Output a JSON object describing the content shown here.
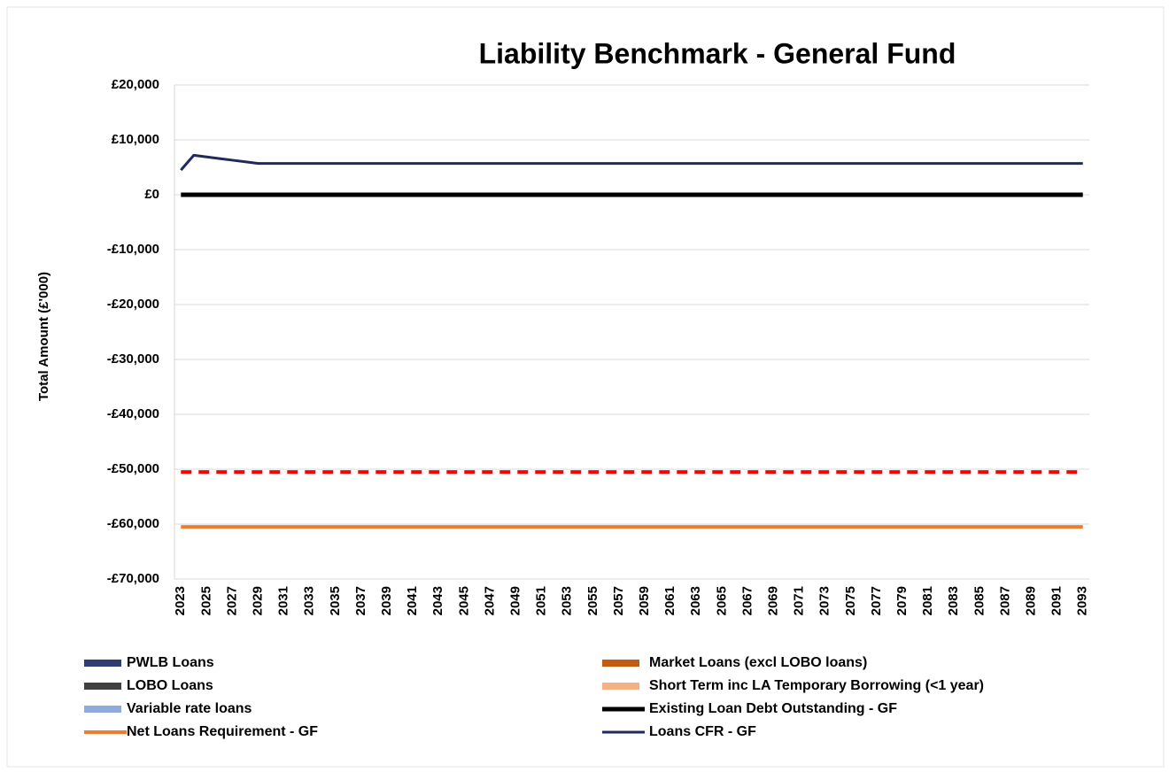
{
  "chart_data": {
    "type": "combo",
    "title": "Liability Benchmark - General Fund",
    "y_label": "Total Amount (£'000)",
    "x": [
      2023,
      2024,
      2025,
      2026,
      2027,
      2028,
      2029,
      2030,
      2031,
      2032,
      2033,
      2034,
      2035,
      2036,
      2037,
      2038,
      2039,
      2040,
      2041,
      2042,
      2043,
      2044,
      2045,
      2046,
      2047,
      2048,
      2049,
      2050,
      2051,
      2052,
      2053,
      2054,
      2055,
      2056,
      2057,
      2058,
      2059,
      2060,
      2061,
      2062,
      2063,
      2064,
      2065,
      2066,
      2067,
      2068,
      2069,
      2070,
      2071,
      2072,
      2073,
      2074,
      2075,
      2076,
      2077,
      2078,
      2079,
      2080,
      2081,
      2082,
      2083,
      2084,
      2085,
      2086,
      2087,
      2088,
      2089,
      2090,
      2091,
      2092,
      2093
    ],
    "xlim": [
      2022.5,
      2093.5
    ],
    "xticks": [
      2023,
      2025,
      2027,
      2029,
      2031,
      2033,
      2035,
      2037,
      2039,
      2041,
      2043,
      2045,
      2047,
      2049,
      2051,
      2053,
      2055,
      2057,
      2059,
      2061,
      2063,
      2065,
      2067,
      2069,
      2071,
      2073,
      2075,
      2077,
      2079,
      2081,
      2083,
      2085,
      2087,
      2089,
      2091,
      2093
    ],
    "ylim": [
      -70000,
      20000
    ],
    "yticks": [
      {
        "value": -70000,
        "label": "-£70,000"
      },
      {
        "value": -60000,
        "label": "-£60,000"
      },
      {
        "value": -50000,
        "label": "-£50,000"
      },
      {
        "value": -40000,
        "label": "-£40,000"
      },
      {
        "value": -30000,
        "label": "-£30,000"
      },
      {
        "value": -20000,
        "label": "-£20,000"
      },
      {
        "value": -10000,
        "label": "-£10,000"
      },
      {
        "value": 0,
        "label": "£0"
      },
      {
        "value": 10000,
        "label": "£10,000"
      },
      {
        "value": 20000,
        "label": "£20,000"
      }
    ],
    "grid": true,
    "series": [
      {
        "name": "PWLB Loans",
        "type": "bar",
        "color": "#2f3d73",
        "values": [
          0,
          0,
          0,
          0,
          0,
          0,
          0,
          0,
          0,
          0,
          0,
          0,
          0,
          0,
          0,
          0,
          0,
          0,
          0,
          0,
          0,
          0,
          0,
          0,
          0,
          0,
          0,
          0,
          0,
          0,
          0,
          0,
          0,
          0,
          0,
          0,
          0,
          0,
          0,
          0,
          0,
          0,
          0,
          0,
          0,
          0,
          0,
          0,
          0,
          0,
          0,
          0,
          0,
          0,
          0,
          0,
          0,
          0,
          0,
          0,
          0,
          0,
          0,
          0,
          0,
          0,
          0,
          0,
          0,
          0,
          0
        ]
      },
      {
        "name": "Market Loans (excl LOBO loans)",
        "type": "bar",
        "color": "#c55a11",
        "values": [
          0,
          0,
          0,
          0,
          0,
          0,
          0,
          0,
          0,
          0,
          0,
          0,
          0,
          0,
          0,
          0,
          0,
          0,
          0,
          0,
          0,
          0,
          0,
          0,
          0,
          0,
          0,
          0,
          0,
          0,
          0,
          0,
          0,
          0,
          0,
          0,
          0,
          0,
          0,
          0,
          0,
          0,
          0,
          0,
          0,
          0,
          0,
          0,
          0,
          0,
          0,
          0,
          0,
          0,
          0,
          0,
          0,
          0,
          0,
          0,
          0,
          0,
          0,
          0,
          0,
          0,
          0,
          0,
          0,
          0,
          0
        ]
      },
      {
        "name": "LOBO Loans",
        "type": "bar",
        "color": "#404040",
        "values": [
          0,
          0,
          0,
          0,
          0,
          0,
          0,
          0,
          0,
          0,
          0,
          0,
          0,
          0,
          0,
          0,
          0,
          0,
          0,
          0,
          0,
          0,
          0,
          0,
          0,
          0,
          0,
          0,
          0,
          0,
          0,
          0,
          0,
          0,
          0,
          0,
          0,
          0,
          0,
          0,
          0,
          0,
          0,
          0,
          0,
          0,
          0,
          0,
          0,
          0,
          0,
          0,
          0,
          0,
          0,
          0,
          0,
          0,
          0,
          0,
          0,
          0,
          0,
          0,
          0,
          0,
          0,
          0,
          0,
          0,
          0
        ]
      },
      {
        "name": "Short Term inc LA Temporary Borrowing (<1 year)",
        "type": "bar",
        "color": "#f4b183",
        "values": [
          0,
          0,
          0,
          0,
          0,
          0,
          0,
          0,
          0,
          0,
          0,
          0,
          0,
          0,
          0,
          0,
          0,
          0,
          0,
          0,
          0,
          0,
          0,
          0,
          0,
          0,
          0,
          0,
          0,
          0,
          0,
          0,
          0,
          0,
          0,
          0,
          0,
          0,
          0,
          0,
          0,
          0,
          0,
          0,
          0,
          0,
          0,
          0,
          0,
          0,
          0,
          0,
          0,
          0,
          0,
          0,
          0,
          0,
          0,
          0,
          0,
          0,
          0,
          0,
          0,
          0,
          0,
          0,
          0,
          0,
          0
        ]
      },
      {
        "name": "Variable rate loans",
        "type": "bar",
        "color": "#8faadc",
        "values": [
          0,
          0,
          0,
          0,
          0,
          0,
          0,
          0,
          0,
          0,
          0,
          0,
          0,
          0,
          0,
          0,
          0,
          0,
          0,
          0,
          0,
          0,
          0,
          0,
          0,
          0,
          0,
          0,
          0,
          0,
          0,
          0,
          0,
          0,
          0,
          0,
          0,
          0,
          0,
          0,
          0,
          0,
          0,
          0,
          0,
          0,
          0,
          0,
          0,
          0,
          0,
          0,
          0,
          0,
          0,
          0,
          0,
          0,
          0,
          0,
          0,
          0,
          0,
          0,
          0,
          0,
          0,
          0,
          0,
          0,
          0
        ]
      },
      {
        "name": "Existing Loan Debt Outstanding - GF",
        "type": "line",
        "color": "#000000",
        "values": [
          0,
          0,
          0,
          0,
          0,
          0,
          0,
          0,
          0,
          0,
          0,
          0,
          0,
          0,
          0,
          0,
          0,
          0,
          0,
          0,
          0,
          0,
          0,
          0,
          0,
          0,
          0,
          0,
          0,
          0,
          0,
          0,
          0,
          0,
          0,
          0,
          0,
          0,
          0,
          0,
          0,
          0,
          0,
          0,
          0,
          0,
          0,
          0,
          0,
          0,
          0,
          0,
          0,
          0,
          0,
          0,
          0,
          0,
          0,
          0,
          0,
          0,
          0,
          0,
          0,
          0,
          0,
          0,
          0,
          0,
          0
        ]
      },
      {
        "name": "Net Loans Requirement - GF",
        "type": "line",
        "color": "#ed7d31",
        "values": [
          -60500,
          -60500,
          -60500,
          -60500,
          -60500,
          -60500,
          -60500,
          -60500,
          -60500,
          -60500,
          -60500,
          -60500,
          -60500,
          -60500,
          -60500,
          -60500,
          -60500,
          -60500,
          -60500,
          -60500,
          -60500,
          -60500,
          -60500,
          -60500,
          -60500,
          -60500,
          -60500,
          -60500,
          -60500,
          -60500,
          -60500,
          -60500,
          -60500,
          -60500,
          -60500,
          -60500,
          -60500,
          -60500,
          -60500,
          -60500,
          -60500,
          -60500,
          -60500,
          -60500,
          -60500,
          -60500,
          -60500,
          -60500,
          -60500,
          -60500,
          -60500,
          -60500,
          -60500,
          -60500,
          -60500,
          -60500,
          -60500,
          -60500,
          -60500,
          -60500,
          -60500,
          -60500,
          -60500,
          -60500,
          -60500,
          -60500,
          -60500,
          -60500,
          -60500,
          -60500,
          -60500
        ]
      },
      {
        "name": "Loans CFR - GF",
        "type": "line",
        "color": "#1f2a5c",
        "values": [
          4500,
          7200,
          6900,
          6600,
          6300,
          6000,
          5700,
          5700,
          5700,
          5700,
          5700,
          5700,
          5700,
          5700,
          5700,
          5700,
          5700,
          5700,
          5700,
          5700,
          5700,
          5700,
          5700,
          5700,
          5700,
          5700,
          5700,
          5700,
          5700,
          5700,
          5700,
          5700,
          5700,
          5700,
          5700,
          5700,
          5700,
          5700,
          5700,
          5700,
          5700,
          5700,
          5700,
          5700,
          5700,
          5700,
          5700,
          5700,
          5700,
          5700,
          5700,
          5700,
          5700,
          5700,
          5700,
          5700,
          5700,
          5700,
          5700,
          5700,
          5700,
          5700,
          5700,
          5700,
          5700,
          5700,
          5700,
          5700,
          5700,
          5700,
          5700
        ]
      },
      {
        "type": "line",
        "color": "#ff0000",
        "dashed": true,
        "values": [
          -50500,
          -50500,
          -50500,
          -50500,
          -50500,
          -50500,
          -50500,
          -50500,
          -50500,
          -50500,
          -50500,
          -50500,
          -50500,
          -50500,
          -50500,
          -50500,
          -50500,
          -50500,
          -50500,
          -50500,
          -50500,
          -50500,
          -50500,
          -50500,
          -50500,
          -50500,
          -50500,
          -50500,
          -50500,
          -50500,
          -50500,
          -50500,
          -50500,
          -50500,
          -50500,
          -50500,
          -50500,
          -50500,
          -50500,
          -50500,
          -50500,
          -50500,
          -50500,
          -50500,
          -50500,
          -50500,
          -50500,
          -50500,
          -50500,
          -50500,
          -50500,
          -50500,
          -50500,
          -50500,
          -50500,
          -50500,
          -50500,
          -50500,
          -50500,
          -50500,
          -50500,
          -50500,
          -50500,
          -50500,
          -50500,
          -50500,
          -50500,
          -50500,
          -50500,
          -50500,
          -50500
        ]
      }
    ]
  }
}
